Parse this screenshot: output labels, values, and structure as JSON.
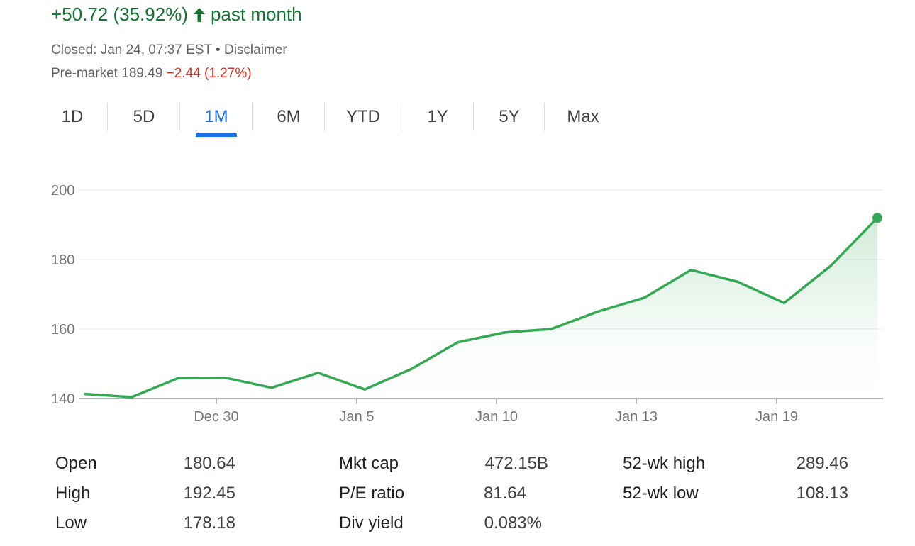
{
  "headline": {
    "change": "+50.72 (35.92%)",
    "period": "past month",
    "direction_icon": "arrow-up-icon",
    "color": "#137333"
  },
  "meta": {
    "closed": "Closed: Jan 24, 07:37 EST",
    "separator": "•",
    "disclaimer": "Disclaimer",
    "premarket_label": "Pre-market",
    "premarket_price": "189.49",
    "premarket_change": "−2.44 (1.27%)",
    "negative_color": "#d93025"
  },
  "tabs": [
    {
      "label": "1D"
    },
    {
      "label": "5D"
    },
    {
      "label": "1M",
      "active": true
    },
    {
      "label": "6M"
    },
    {
      "label": "YTD"
    },
    {
      "label": "1Y"
    },
    {
      "label": "5Y"
    },
    {
      "label": "Max"
    }
  ],
  "chart_data": {
    "type": "area",
    "y_ticks": [
      "200",
      "180",
      "160",
      "140"
    ],
    "ylim": [
      140,
      200
    ],
    "x_ticks": [
      "Dec 30",
      "Jan 5",
      "Jan 10",
      "Jan 13",
      "Jan 19"
    ],
    "grid": true,
    "line_color": "#34a853",
    "series": [
      {
        "values": [
          141.3,
          140.4,
          145.9,
          146.0,
          143.1,
          147.4,
          142.6,
          148.5,
          156.2,
          159.0,
          160.0,
          165.0,
          169.0,
          177.0,
          173.6,
          167.5,
          178.2,
          192.0
        ]
      }
    ]
  },
  "stats": {
    "col1": [
      {
        "label": "Open",
        "value": "180.64"
      },
      {
        "label": "High",
        "value": "192.45"
      },
      {
        "label": "Low",
        "value": "178.18"
      }
    ],
    "col2": [
      {
        "label": "Mkt cap",
        "value": "472.15B"
      },
      {
        "label": "P/E ratio",
        "value": "81.64"
      },
      {
        "label": "Div yield",
        "value": "0.083%"
      }
    ],
    "col3": [
      {
        "label": "52-wk high",
        "value": "289.46"
      },
      {
        "label": "52-wk low",
        "value": "108.13"
      }
    ]
  }
}
